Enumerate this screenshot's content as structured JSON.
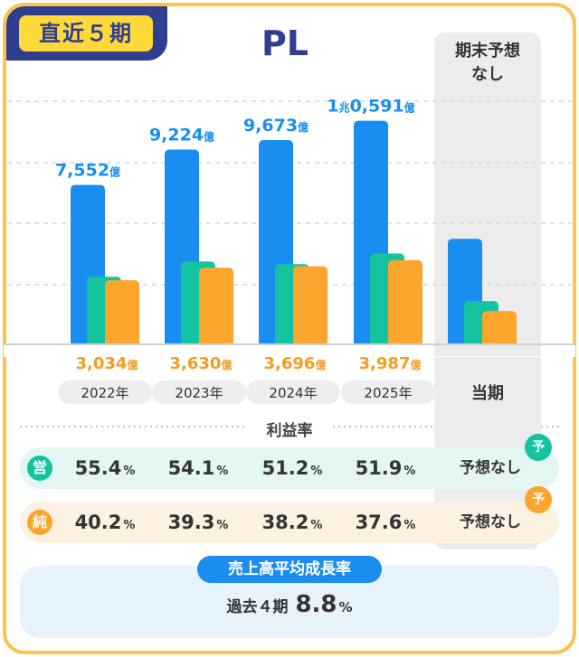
{
  "badge": "直近５期",
  "title": "PL",
  "forecast": {
    "header_line1": "期末予想",
    "header_line2": "なし",
    "label": "当期"
  },
  "chart_data": {
    "type": "bar",
    "categories": [
      "2022年",
      "2023年",
      "2024年",
      "2025年",
      "当期"
    ],
    "series": [
      {
        "values": [
          7552,
          9224,
          9673,
          10591,
          5000
        ],
        "color": "#1a8ef0"
      },
      {
        "values": [
          3200,
          3920,
          3800,
          4300,
          2050
        ],
        "color": "#14c3a0"
      },
      {
        "values": [
          3034,
          3630,
          3696,
          3987,
          1580
        ],
        "color": "#fba52c"
      }
    ],
    "top_labels": [
      {
        "num": "7,552",
        "unit": "億"
      },
      {
        "num": "9,224",
        "unit": "億"
      },
      {
        "num": "9,673",
        "unit": "億"
      },
      {
        "pre": "1",
        "mid": "兆",
        "num": "0,591",
        "unit": "億"
      }
    ],
    "bottom_labels": [
      {
        "num": "3,034",
        "unit": "億"
      },
      {
        "num": "3,630",
        "unit": "億"
      },
      {
        "num": "3,696",
        "unit": "億"
      },
      {
        "num": "3,987",
        "unit": "億"
      }
    ],
    "ylim": [
      0,
      11600
    ],
    "grid": true
  },
  "ratios": {
    "title": "利益率",
    "operating": {
      "badge": "営",
      "values": [
        "55.4",
        "54.1",
        "51.2",
        "51.9"
      ],
      "none": "予想なし",
      "flag": "予"
    },
    "net": {
      "badge": "純",
      "values": [
        "40.2",
        "39.3",
        "38.2",
        "37.6"
      ],
      "none": "予想なし",
      "flag": "予"
    },
    "pct": "%"
  },
  "cagr": {
    "label": "売上高平均成長率",
    "prefix": "過去４期",
    "value": "8.8",
    "pct": "%"
  }
}
